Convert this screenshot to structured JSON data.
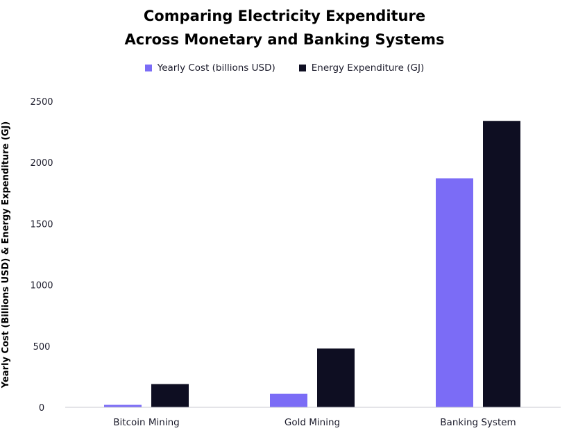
{
  "chart_data": {
    "type": "bar",
    "title_lines": [
      "Comparing Electricity Expenditure",
      "Across Monetary and Banking Systems"
    ],
    "categories": [
      "Bitcoin Mining",
      "Gold Mining",
      "Banking System"
    ],
    "series": [
      {
        "name": "Yearly Cost (billions USD)",
        "values": [
          20,
          110,
          1870
        ],
        "color": "#7b6cf6"
      },
      {
        "name": "Energy Expenditure (GJ)",
        "values": [
          190,
          480,
          2340
        ],
        "color": "#0e0e22"
      }
    ],
    "xlabel": "",
    "ylabel": "Yearly Cost (Billions USD) & Energy Expenditure (GJ)",
    "ylim": [
      0,
      2500
    ],
    "yticks": [
      "0",
      "500",
      "1000",
      "1500",
      "2000",
      "2500"
    ],
    "grid": false,
    "legend_position": "top-center"
  }
}
